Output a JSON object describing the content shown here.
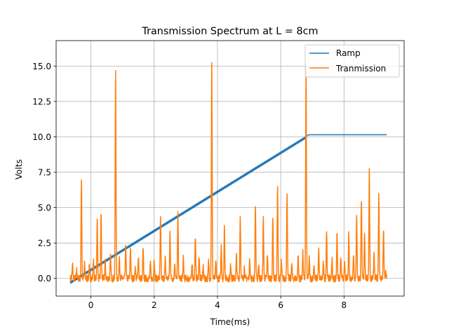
{
  "chart_data": {
    "type": "line",
    "title": "Transmission Spectrum at L = 8cm",
    "xlabel": "Time(ms)",
    "ylabel": "Volts",
    "xlim": [
      -1.1,
      9.9
    ],
    "ylim": [
      -1.25,
      16.8
    ],
    "x_ticks": [
      0,
      2,
      4,
      6,
      8
    ],
    "y_ticks": [
      0.0,
      2.5,
      5.0,
      7.5,
      10.0,
      12.5,
      15.0
    ],
    "x_tick_labels": [
      "0",
      "2",
      "4",
      "6",
      "8"
    ],
    "y_tick_labels": [
      "0.0",
      "2.5",
      "5.0",
      "7.5",
      "10.0",
      "12.5",
      "15.0"
    ],
    "grid": true,
    "legend_position": "top-right",
    "series": [
      {
        "name": "Ramp",
        "color": "#1f77b4",
        "x": [
          -0.65,
          6.82,
          6.9,
          9.35
        ],
        "y": [
          -0.3,
          10.0,
          10.15,
          10.15
        ]
      },
      {
        "name": "Tranmission",
        "color": "#ff7f0e",
        "peaks": [
          {
            "t": -0.58,
            "v": 1.0
          },
          {
            "t": -0.45,
            "v": 0.6
          },
          {
            "t": -0.3,
            "v": 7.0
          },
          {
            "t": -0.2,
            "v": 1.0
          },
          {
            "t": -0.05,
            "v": 0.8
          },
          {
            "t": 0.08,
            "v": 1.4
          },
          {
            "t": 0.2,
            "v": 4.2
          },
          {
            "t": 0.32,
            "v": 4.6
          },
          {
            "t": 0.45,
            "v": 1.2
          },
          {
            "t": 0.62,
            "v": 1.6
          },
          {
            "t": 0.78,
            "v": 14.8
          },
          {
            "t": 0.9,
            "v": 1.6
          },
          {
            "t": 1.1,
            "v": 2.4
          },
          {
            "t": 1.25,
            "v": 2.2
          },
          {
            "t": 1.4,
            "v": 0.8
          },
          {
            "t": 1.5,
            "v": 1.6
          },
          {
            "t": 1.65,
            "v": 2.0
          },
          {
            "t": 1.88,
            "v": 1.0
          },
          {
            "t": 2.0,
            "v": 1.4
          },
          {
            "t": 2.2,
            "v": 4.2
          },
          {
            "t": 2.35,
            "v": 1.4
          },
          {
            "t": 2.5,
            "v": 3.3
          },
          {
            "t": 2.65,
            "v": 1.2
          },
          {
            "t": 2.75,
            "v": 4.5
          },
          {
            "t": 2.92,
            "v": 1.4
          },
          {
            "t": 3.2,
            "v": 1.0
          },
          {
            "t": 3.3,
            "v": 3.0
          },
          {
            "t": 3.42,
            "v": 1.6
          },
          {
            "t": 3.55,
            "v": 0.9
          },
          {
            "t": 3.72,
            "v": 1.2
          },
          {
            "t": 3.82,
            "v": 15.2
          },
          {
            "t": 3.95,
            "v": 1.2
          },
          {
            "t": 4.12,
            "v": 2.3
          },
          {
            "t": 4.22,
            "v": 3.7
          },
          {
            "t": 4.42,
            "v": 1.0
          },
          {
            "t": 4.6,
            "v": 1.6
          },
          {
            "t": 4.72,
            "v": 4.4
          },
          {
            "t": 4.85,
            "v": 0.8
          },
          {
            "t": 5.02,
            "v": 1.4
          },
          {
            "t": 5.2,
            "v": 5.2
          },
          {
            "t": 5.3,
            "v": 1.0
          },
          {
            "t": 5.45,
            "v": 4.2
          },
          {
            "t": 5.58,
            "v": 1.6
          },
          {
            "t": 5.75,
            "v": 4.2
          },
          {
            "t": 5.9,
            "v": 6.4
          },
          {
            "t": 6.02,
            "v": 1.2
          },
          {
            "t": 6.2,
            "v": 6.2
          },
          {
            "t": 6.35,
            "v": 1.0
          },
          {
            "t": 6.55,
            "v": 1.6
          },
          {
            "t": 6.7,
            "v": 1.8
          },
          {
            "t": 6.8,
            "v": 15.0
          },
          {
            "t": 6.9,
            "v": 1.4
          },
          {
            "t": 7.05,
            "v": 1.0
          },
          {
            "t": 7.2,
            "v": 2.0
          },
          {
            "t": 7.35,
            "v": 1.2
          },
          {
            "t": 7.45,
            "v": 3.4
          },
          {
            "t": 7.62,
            "v": 1.4
          },
          {
            "t": 7.78,
            "v": 3.3
          },
          {
            "t": 7.9,
            "v": 1.4
          },
          {
            "t": 8.02,
            "v": 1.0
          },
          {
            "t": 8.15,
            "v": 3.2
          },
          {
            "t": 8.3,
            "v": 1.8
          },
          {
            "t": 8.4,
            "v": 4.6
          },
          {
            "t": 8.55,
            "v": 5.6
          },
          {
            "t": 8.65,
            "v": 3.3
          },
          {
            "t": 8.8,
            "v": 7.6
          },
          {
            "t": 8.95,
            "v": 1.6
          },
          {
            "t": 9.1,
            "v": 6.0
          },
          {
            "t": 9.25,
            "v": 3.4
          },
          {
            "t": 9.32,
            "v": 0.4
          }
        ]
      }
    ]
  }
}
